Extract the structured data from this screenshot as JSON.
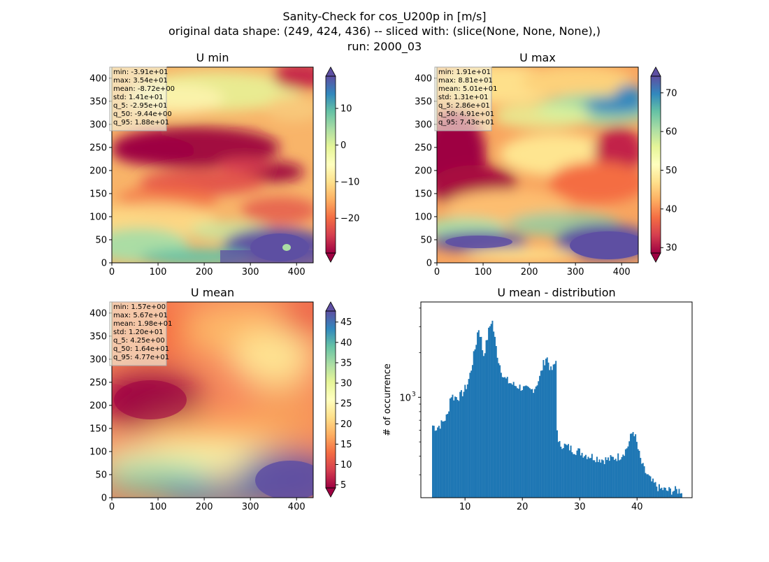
{
  "figure": {
    "title_lines": [
      "Sanity-Check for cos_U200p in [m/s]",
      "original data shape: (249, 424, 436) -- sliced with: (slice(None, None, None),)",
      "run: 2000_03"
    ]
  },
  "chart_data": [
    {
      "type": "heatmap",
      "title": "U min",
      "colormap": "Spectral",
      "xlim": [
        0,
        436
      ],
      "ylim": [
        0,
        424
      ],
      "xticks": [
        0,
        100,
        200,
        300,
        400
      ],
      "yticks": [
        0,
        50,
        100,
        150,
        200,
        250,
        300,
        350,
        400
      ],
      "color_range": [
        -29.5,
        18.8
      ],
      "colorbar_ticks": [
        -20,
        -10,
        0,
        10
      ],
      "colorbar_tick_labels": [
        "−20",
        "−10",
        "0",
        "10"
      ],
      "stats": [
        "min: -3.91e+01",
        "max: 3.54e+01",
        "mean: -8.72e+00",
        "std: 1.41e+01",
        "q_5: -2.95e+01",
        "q_50: -9.44e+00",
        "q_95: 1.88e+01"
      ]
    },
    {
      "type": "heatmap",
      "title": "U max",
      "colormap": "Spectral",
      "xlim": [
        0,
        436
      ],
      "ylim": [
        0,
        424
      ],
      "xticks": [
        0,
        100,
        200,
        300,
        400
      ],
      "yticks": [
        0,
        50,
        100,
        150,
        200,
        250,
        300,
        350,
        400
      ],
      "color_range": [
        28.6,
        74.3
      ],
      "colorbar_ticks": [
        30,
        40,
        50,
        60,
        70
      ],
      "colorbar_tick_labels": [
        "30",
        "40",
        "50",
        "60",
        "70"
      ],
      "stats": [
        "min: 1.91e+01",
        "max: 8.81e+01",
        "mean: 5.01e+01",
        "std: 1.31e+01",
        "q_5: 2.86e+01",
        "q_50: 4.91e+01",
        "q_95: 7.43e+01"
      ]
    },
    {
      "type": "heatmap",
      "title": "U mean",
      "colormap": "Spectral",
      "xlim": [
        0,
        436
      ],
      "ylim": [
        0,
        424
      ],
      "xticks": [
        0,
        100,
        200,
        300,
        400
      ],
      "yticks": [
        0,
        50,
        100,
        150,
        200,
        250,
        300,
        350,
        400
      ],
      "color_range": [
        4.25,
        47.7
      ],
      "colorbar_ticks": [
        5,
        10,
        15,
        20,
        25,
        30,
        35,
        40,
        45
      ],
      "colorbar_tick_labels": [
        "5",
        "10",
        "15",
        "20",
        "25",
        "30",
        "35",
        "40",
        "45"
      ],
      "stats": [
        "min: 1.57e+00",
        "max: 5.67e+01",
        "mean: 1.98e+01",
        "std: 1.20e+01",
        "q_5: 4.25e+00",
        "q_50: 1.64e+01",
        "q_95: 4.77e+01"
      ]
    },
    {
      "type": "bar",
      "title": "U mean - distribution",
      "ylabel": "# of occurrence",
      "yscale": "log",
      "xlim": [
        2.3,
        49.6
      ],
      "ylim": [
        210,
        4400
      ],
      "xticks": [
        10,
        20,
        30,
        40
      ],
      "yticks_major": [
        1000
      ],
      "ytick_major_label": "10",
      "ytick_major_exp": "3",
      "yticks_minor": [
        300,
        400,
        500,
        600,
        700,
        800,
        900,
        2000,
        3000,
        4000
      ],
      "bin_width": 0.217,
      "color": "#1f77b4",
      "x": [
        4.25,
        5.0,
        6.0,
        7.0,
        7.5,
        8.0,
        9.0,
        9.8,
        10.5,
        11.0,
        11.5,
        12.0,
        12.3,
        12.8,
        13.2,
        13.7,
        14.2,
        14.7,
        15.0,
        15.4,
        15.8,
        16.3,
        16.8,
        17.5,
        18.5,
        19.5,
        20.5,
        21.5,
        22.2,
        23.0,
        23.6,
        24.2,
        24.6,
        25.0,
        25.5,
        25.9,
        26.1,
        27.0,
        28.0,
        29.0,
        30.0,
        31.0,
        32.0,
        33.0,
        34.0,
        35.0,
        36.0,
        37.0,
        38.0,
        38.5,
        39.0,
        39.4,
        39.8,
        40.2,
        40.6,
        41.0,
        41.5,
        42.0,
        42.5,
        43.0,
        43.5,
        44.0,
        44.5,
        45.0,
        46.0,
        47.0,
        47.7
      ],
      "values": [
        650,
        620,
        670,
        760,
        1050,
        1000,
        1010,
        1100,
        1250,
        1500,
        1900,
        2400,
        3000,
        2500,
        1900,
        2300,
        2900,
        3400,
        2800,
        2200,
        1800,
        1550,
        1350,
        1280,
        1210,
        1180,
        1130,
        1110,
        1170,
        1350,
        1650,
        1900,
        1700,
        1500,
        1600,
        1800,
        480,
        480,
        460,
        440,
        430,
        410,
        400,
        390,
        380,
        380,
        390,
        400,
        440,
        480,
        560,
        600,
        520,
        440,
        380,
        340,
        310,
        290,
        270,
        260,
        250,
        240,
        240,
        235,
        235,
        235,
        235
      ]
    }
  ]
}
